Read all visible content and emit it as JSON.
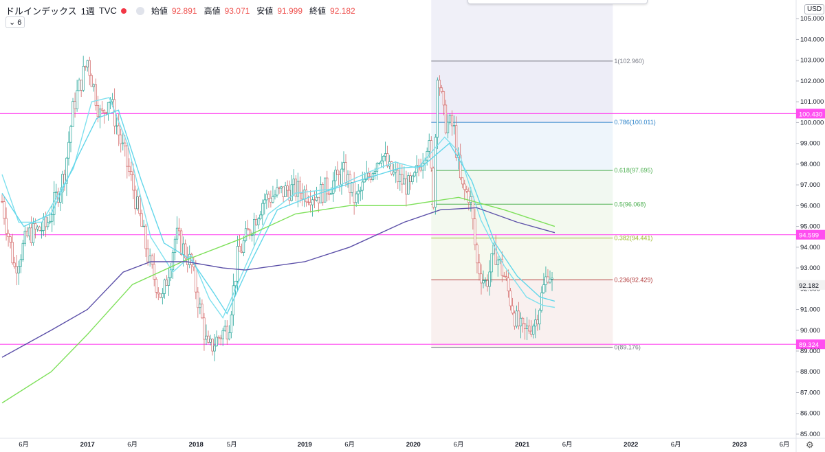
{
  "legend": {
    "symbol": "ドルインデックス",
    "interval": "1週",
    "source": "TVC",
    "open_label": "始値",
    "open": "92.891",
    "high_label": "高値",
    "high": "93.071",
    "low_label": "安値",
    "low": "91.999",
    "close_label": "終値",
    "close": "92.182"
  },
  "indicator_toggle": "6",
  "currency": "USD",
  "icons": {
    "settings": "gear-icon",
    "legend_dot": "status-dot-icon",
    "eye": "visibility-icon",
    "chevron": "chevron-down-icon"
  },
  "colors": {
    "up": "#26a69a",
    "down": "#ef5350",
    "candle_outline": "#d46a6a",
    "ma_short": "#7ee0ee",
    "ma_mid": "#62d6ea",
    "ma_long_green": "#7ee05a",
    "ma_long_purple": "#5b4fa8",
    "hline": "#ff4ef0",
    "last_price_label": "#f2f2f2"
  },
  "chart_data": {
    "type": "candlestick",
    "y_range": [
      84.8,
      105.9
    ],
    "x_range": [
      "2016-03-20",
      "2023-07-10"
    ],
    "y_ticks": [
      "85.000",
      "86.000",
      "87.000",
      "88.000",
      "89.000",
      "90.000",
      "91.000",
      "92.000",
      "93.000",
      "94.000",
      "95.000",
      "96.000",
      "97.000",
      "98.000",
      "99.000",
      "100.000",
      "101.000",
      "102.000",
      "103.000",
      "104.000",
      "105.000"
    ],
    "x_ticks": [
      {
        "label": "6月",
        "date": "2016-06-01"
      },
      {
        "label": "2017",
        "date": "2017-01-01"
      },
      {
        "label": "6月",
        "date": "2017-06-01"
      },
      {
        "label": "2018",
        "date": "2018-01-01"
      },
      {
        "label": "5月",
        "date": "2018-05-01"
      },
      {
        "label": "2019",
        "date": "2019-01-01"
      },
      {
        "label": "6月",
        "date": "2019-06-01"
      },
      {
        "label": "2020",
        "date": "2020-01-01"
      },
      {
        "label": "6月",
        "date": "2020-06-01"
      },
      {
        "label": "2021",
        "date": "2021-01-01"
      },
      {
        "label": "6月",
        "date": "2021-06-01"
      },
      {
        "label": "2022",
        "date": "2022-01-01"
      },
      {
        "label": "6月",
        "date": "2022-06-01"
      },
      {
        "label": "2023",
        "date": "2023-01-01"
      },
      {
        "label": "6月",
        "date": "2023-06-01"
      }
    ],
    "last_price": "92.182",
    "price_anchors": [
      {
        "d": "2016-03-20",
        "v": 96.2
      },
      {
        "d": "2016-05-01",
        "v": 93.0
      },
      {
        "d": "2016-06-15",
        "v": 94.6
      },
      {
        "d": "2016-08-15",
        "v": 95.0
      },
      {
        "d": "2016-10-15",
        "v": 97.5
      },
      {
        "d": "2016-11-15",
        "v": 100.8
      },
      {
        "d": "2017-01-01",
        "v": 103.0
      },
      {
        "d": "2017-02-15",
        "v": 100.2
      },
      {
        "d": "2017-03-15",
        "v": 101.3
      },
      {
        "d": "2017-04-15",
        "v": 99.5
      },
      {
        "d": "2017-06-01",
        "v": 97.0
      },
      {
        "d": "2017-08-01",
        "v": 93.0
      },
      {
        "d": "2017-09-10",
        "v": 91.5
      },
      {
        "d": "2017-10-25",
        "v": 94.6
      },
      {
        "d": "2017-12-15",
        "v": 93.2
      },
      {
        "d": "2018-02-10",
        "v": 89.0
      },
      {
        "d": "2018-03-25",
        "v": 89.8
      },
      {
        "d": "2018-04-20",
        "v": 90.2
      },
      {
        "d": "2018-05-20",
        "v": 93.5
      },
      {
        "d": "2018-08-15",
        "v": 96.3
      },
      {
        "d": "2018-11-15",
        "v": 96.8
      },
      {
        "d": "2019-02-15",
        "v": 96.5
      },
      {
        "d": "2019-05-15",
        "v": 97.6
      },
      {
        "d": "2019-06-20",
        "v": 96.2
      },
      {
        "d": "2019-09-15",
        "v": 98.6
      },
      {
        "d": "2019-10-15",
        "v": 97.6
      },
      {
        "d": "2019-12-25",
        "v": 96.8
      },
      {
        "d": "2020-02-20",
        "v": 99.2
      },
      {
        "d": "2020-03-10",
        "v": 96.0
      },
      {
        "d": "2020-03-20",
        "v": 102.8
      },
      {
        "d": "2020-04-15",
        "v": 100.0
      },
      {
        "d": "2020-05-15",
        "v": 99.8
      },
      {
        "d": "2020-06-10",
        "v": 96.8
      },
      {
        "d": "2020-07-10",
        "v": 96.5
      },
      {
        "d": "2020-08-01",
        "v": 93.2
      },
      {
        "d": "2020-09-01",
        "v": 92.2
      },
      {
        "d": "2020-10-01",
        "v": 93.8
      },
      {
        "d": "2020-11-01",
        "v": 92.6
      },
      {
        "d": "2020-12-10",
        "v": 90.5
      },
      {
        "d": "2021-01-05",
        "v": 89.8
      },
      {
        "d": "2021-02-15",
        "v": 90.5
      },
      {
        "d": "2021-03-31",
        "v": 93.0
      },
      {
        "d": "2021-04-12",
        "v": 92.182
      }
    ],
    "moving_averages": [
      {
        "color": "#7ee0ee",
        "points": [
          {
            "d": "2016-03-20",
            "v": 97.5
          },
          {
            "d": "2016-05-15",
            "v": 95.2
          },
          {
            "d": "2016-08-01",
            "v": 95.2
          },
          {
            "d": "2016-11-15",
            "v": 97.8
          },
          {
            "d": "2017-01-15",
            "v": 101.0
          },
          {
            "d": "2017-03-15",
            "v": 101.2
          },
          {
            "d": "2017-05-15",
            "v": 99.0
          },
          {
            "d": "2017-08-01",
            "v": 94.5
          },
          {
            "d": "2017-10-15",
            "v": 92.8
          },
          {
            "d": "2017-12-15",
            "v": 93.6
          },
          {
            "d": "2018-02-15",
            "v": 91.5
          },
          {
            "d": "2018-04-01",
            "v": 90.6
          },
          {
            "d": "2018-06-01",
            "v": 92.6
          },
          {
            "d": "2018-09-01",
            "v": 95.6
          },
          {
            "d": "2018-12-01",
            "v": 96.6
          },
          {
            "d": "2019-04-01",
            "v": 96.8
          },
          {
            "d": "2019-08-01",
            "v": 97.6
          },
          {
            "d": "2019-11-01",
            "v": 98.1
          },
          {
            "d": "2020-01-15",
            "v": 97.8
          },
          {
            "d": "2020-04-15",
            "v": 99.3
          },
          {
            "d": "2020-06-01",
            "v": 98.6
          },
          {
            "d": "2020-08-15",
            "v": 95.3
          },
          {
            "d": "2020-11-01",
            "v": 93.1
          },
          {
            "d": "2021-01-15",
            "v": 91.6
          },
          {
            "d": "2021-03-10",
            "v": 91.2
          },
          {
            "d": "2021-04-20",
            "v": 91.1
          }
        ]
      },
      {
        "color": "#62d6ea",
        "points": [
          {
            "d": "2016-03-20",
            "v": 96.6
          },
          {
            "d": "2016-06-01",
            "v": 95.0
          },
          {
            "d": "2016-09-01",
            "v": 95.6
          },
          {
            "d": "2016-12-01",
            "v": 98.4
          },
          {
            "d": "2017-02-01",
            "v": 100.2
          },
          {
            "d": "2017-04-15",
            "v": 100.6
          },
          {
            "d": "2017-07-01",
            "v": 97.2
          },
          {
            "d": "2017-09-15",
            "v": 94.2
          },
          {
            "d": "2017-12-15",
            "v": 93.4
          },
          {
            "d": "2018-03-01",
            "v": 91.8
          },
          {
            "d": "2018-04-15",
            "v": 90.8
          },
          {
            "d": "2018-07-01",
            "v": 93.2
          },
          {
            "d": "2018-10-01",
            "v": 95.8
          },
          {
            "d": "2019-02-01",
            "v": 96.5
          },
          {
            "d": "2019-07-01",
            "v": 97.2
          },
          {
            "d": "2019-11-15",
            "v": 97.8
          },
          {
            "d": "2020-02-01",
            "v": 97.9
          },
          {
            "d": "2020-05-01",
            "v": 99.0
          },
          {
            "d": "2020-07-15",
            "v": 97.2
          },
          {
            "d": "2020-10-01",
            "v": 94.2
          },
          {
            "d": "2020-12-15",
            "v": 92.6
          },
          {
            "d": "2021-03-01",
            "v": 91.6
          },
          {
            "d": "2021-04-20",
            "v": 91.4
          }
        ]
      },
      {
        "color": "#7ee05a",
        "points": [
          {
            "d": "2016-03-20",
            "v": 86.5
          },
          {
            "d": "2016-09-01",
            "v": 88.0
          },
          {
            "d": "2017-01-01",
            "v": 89.8
          },
          {
            "d": "2017-06-01",
            "v": 92.2
          },
          {
            "d": "2017-12-01",
            "v": 93.4
          },
          {
            "d": "2018-06-01",
            "v": 94.4
          },
          {
            "d": "2018-12-01",
            "v": 95.6
          },
          {
            "d": "2019-06-01",
            "v": 96.0
          },
          {
            "d": "2019-12-01",
            "v": 96.0
          },
          {
            "d": "2020-06-01",
            "v": 96.4
          },
          {
            "d": "2020-11-01",
            "v": 95.8
          },
          {
            "d": "2021-04-20",
            "v": 95.0
          }
        ]
      },
      {
        "color": "#5b4fa8",
        "points": [
          {
            "d": "2016-03-20",
            "v": 88.7
          },
          {
            "d": "2016-09-01",
            "v": 90.0
          },
          {
            "d": "2017-01-01",
            "v": 91.0
          },
          {
            "d": "2017-05-01",
            "v": 92.8
          },
          {
            "d": "2017-08-01",
            "v": 93.3
          },
          {
            "d": "2017-12-01",
            "v": 93.3
          },
          {
            "d": "2018-04-01",
            "v": 93.0
          },
          {
            "d": "2018-06-15",
            "v": 92.9
          },
          {
            "d": "2019-01-01",
            "v": 93.3
          },
          {
            "d": "2019-06-01",
            "v": 94.0
          },
          {
            "d": "2019-12-01",
            "v": 95.2
          },
          {
            "d": "2020-04-01",
            "v": 95.8
          },
          {
            "d": "2020-08-01",
            "v": 95.9
          },
          {
            "d": "2020-12-15",
            "v": 95.2
          },
          {
            "d": "2021-04-20",
            "v": 94.7
          }
        ]
      }
    ],
    "fibonacci": {
      "start": "2020-03-01",
      "end": "2021-11-01",
      "levels": [
        {
          "label": "1(102.960)",
          "value": 102.96,
          "color": "#787b86"
        },
        {
          "label": "0.786(100.011)",
          "value": 100.011,
          "color": "#2b82c9"
        },
        {
          "label": "0.618(97.695)",
          "value": 97.695,
          "color": "#4caf50"
        },
        {
          "label": "0.5(96.068)",
          "value": 96.068,
          "color": "#4caf50"
        },
        {
          "label": "0.382(94.441)",
          "value": 94.441,
          "color": "#9bb82a"
        },
        {
          "label": "0.236(92.429)",
          "value": 92.429,
          "color": "#b23b3b"
        },
        {
          "label": "0(89.176)",
          "value": 89.176,
          "color": "#787b86"
        }
      ]
    },
    "horizontal_lines": [
      {
        "value": 100.43,
        "label": "100.430"
      },
      {
        "value": 94.599,
        "label": "94.599"
      },
      {
        "value": 89.324,
        "label": "89.324"
      }
    ]
  }
}
